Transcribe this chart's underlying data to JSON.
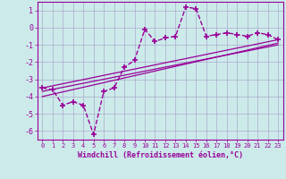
{
  "x": [
    0,
    1,
    2,
    3,
    4,
    5,
    6,
    7,
    8,
    9,
    10,
    11,
    12,
    13,
    14,
    15,
    16,
    17,
    18,
    19,
    20,
    21,
    22,
    23
  ],
  "y": [
    -3.5,
    -3.6,
    -4.5,
    -4.3,
    -4.5,
    -6.2,
    -3.7,
    -3.5,
    -2.3,
    -1.9,
    -0.1,
    -0.8,
    -0.6,
    -0.5,
    1.2,
    1.1,
    -0.5,
    -0.4,
    -0.3,
    -0.4,
    -0.5,
    -0.3,
    -0.4,
    -0.7
  ],
  "line1_x": [
    0,
    23
  ],
  "line1_y": [
    -3.5,
    -0.7
  ],
  "line2_x": [
    0,
    23
  ],
  "line2_y": [
    -3.7,
    -1.0
  ],
  "line3_x": [
    0,
    23
  ],
  "line3_y": [
    -4.0,
    -0.9
  ],
  "color": "#990099",
  "bg_color": "#cceaea",
  "grid_color": "#aaaacc",
  "xlabel": "Windchill (Refroidissement éolien,°C)",
  "xlim": [
    -0.5,
    23.5
  ],
  "ylim": [
    -6.5,
    1.5
  ],
  "xticks": [
    0,
    1,
    2,
    3,
    4,
    5,
    6,
    7,
    8,
    9,
    10,
    11,
    12,
    13,
    14,
    15,
    16,
    17,
    18,
    19,
    20,
    21,
    22,
    23
  ],
  "yticks": [
    1,
    0,
    -1,
    -2,
    -3,
    -4,
    -5,
    -6
  ],
  "marker": "+",
  "markersize": 4,
  "linewidth": 1.0,
  "straight_linewidth": 0.9
}
